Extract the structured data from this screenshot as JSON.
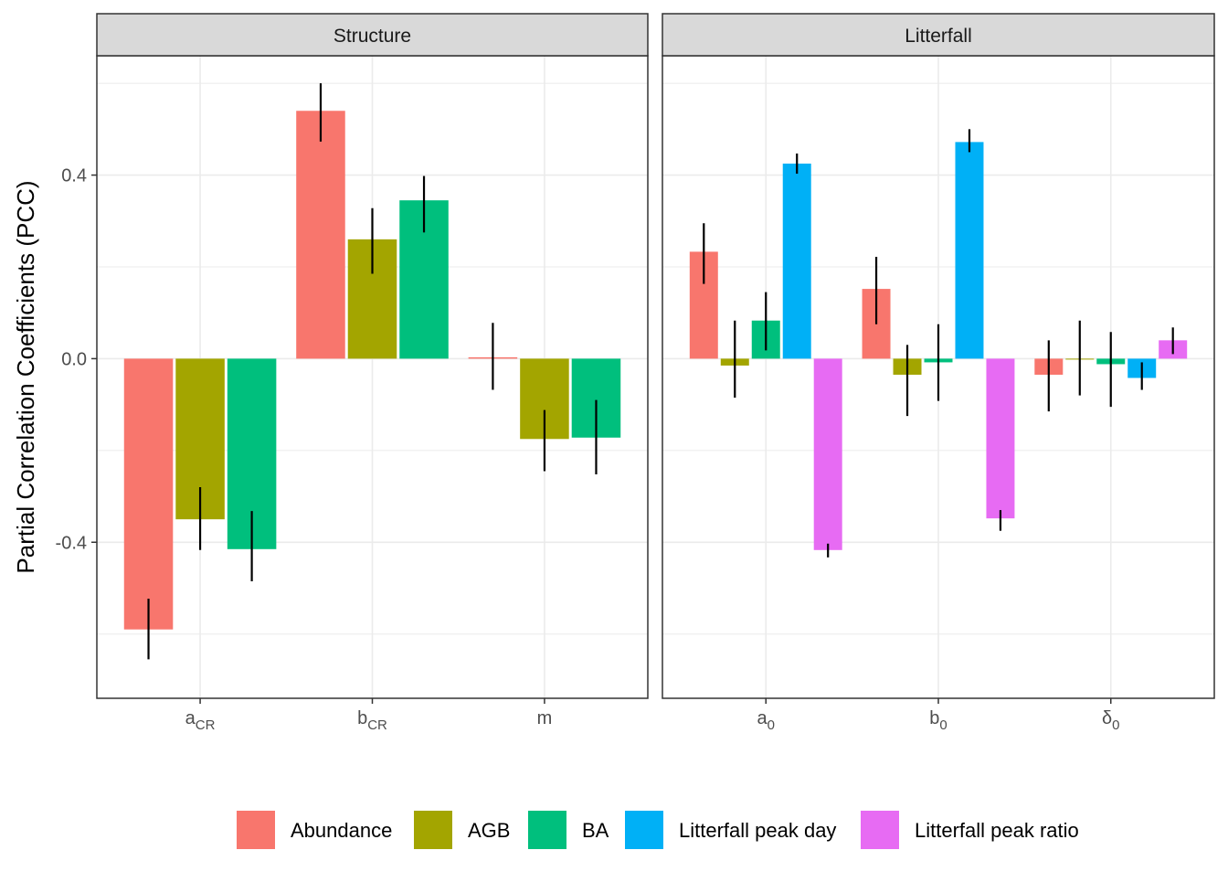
{
  "chart_data": {
    "type": "bar",
    "ylabel": "Partial Correlation Coefficients (PCC)",
    "ylim": [
      -0.74,
      0.66
    ],
    "yticks": [
      {
        "value": -0.4,
        "label": "-0.4"
      },
      {
        "value": 0.0,
        "label": "0.0"
      },
      {
        "value": 0.4,
        "label": "0.4"
      }
    ],
    "series": [
      {
        "name": "Abundance",
        "color": "#F8766D"
      },
      {
        "name": "AGB",
        "color": "#A3A500"
      },
      {
        "name": "BA",
        "color": "#00BF7D"
      },
      {
        "name": "Litterfall peak day",
        "color": "#00B0F6"
      },
      {
        "name": "Litterfall peak ratio",
        "color": "#E76BF3"
      }
    ],
    "legend": {
      "position": "bottom"
    },
    "grid": true,
    "panels": [
      {
        "title": "Structure",
        "n_series": 3,
        "categories": [
          {
            "base": "a",
            "sub": "CR"
          },
          {
            "base": "b",
            "sub": "CR"
          },
          {
            "base": "m",
            "sub": ""
          }
        ],
        "values": [
          [
            -0.59,
            -0.35,
            -0.415
          ],
          [
            0.54,
            0.26,
            0.345
          ],
          [
            0.003,
            -0.175,
            -0.172
          ]
        ],
        "errors": [
          [
            [
              -0.655,
              -0.523
            ],
            [
              -0.417,
              -0.28
            ],
            [
              -0.485,
              -0.332
            ]
          ],
          [
            [
              0.473,
              0.6
            ],
            [
              0.185,
              0.328
            ],
            [
              0.275,
              0.398
            ]
          ],
          [
            [
              -0.068,
              0.078
            ],
            [
              -0.245,
              -0.112
            ],
            [
              -0.252,
              -0.09
            ]
          ]
        ]
      },
      {
        "title": "Litterfall",
        "n_series": 5,
        "categories": [
          {
            "base": "a",
            "sub": "0"
          },
          {
            "base": "b",
            "sub": "0"
          },
          {
            "base": "δ",
            "sub": "0"
          }
        ],
        "values": [
          [
            0.233,
            -0.015,
            0.083,
            0.425,
            -0.417
          ],
          [
            0.152,
            -0.035,
            -0.008,
            0.472,
            -0.348
          ],
          [
            -0.035,
            -0.002,
            -0.012,
            -0.042,
            0.04
          ]
        ],
        "errors": [
          [
            [
              0.163,
              0.295
            ],
            [
              -0.085,
              0.083
            ],
            [
              0.018,
              0.145
            ],
            [
              0.403,
              0.447
            ],
            [
              -0.433,
              -0.403
            ]
          ],
          [
            [
              0.075,
              0.222
            ],
            [
              -0.125,
              0.03
            ],
            [
              -0.092,
              0.075
            ],
            [
              0.45,
              0.5
            ],
            [
              -0.375,
              -0.33
            ]
          ],
          [
            [
              -0.115,
              0.04
            ],
            [
              -0.08,
              0.083
            ],
            [
              -0.105,
              0.058
            ],
            [
              -0.068,
              -0.008
            ],
            [
              0.01,
              0.068
            ]
          ]
        ]
      }
    ]
  }
}
